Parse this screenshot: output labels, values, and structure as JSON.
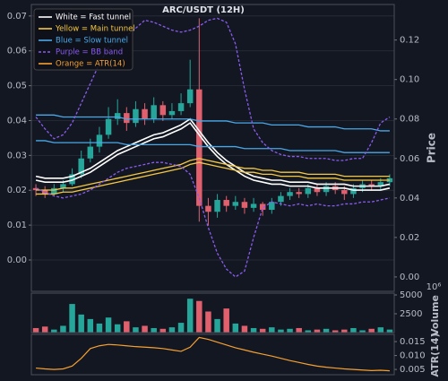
{
  "chart_data": [
    {
      "type": "candlestick",
      "title": "ARC/USDT (12H)",
      "ylabel": "Price",
      "legend": "upper left",
      "up_color": "#26a69a",
      "down_color": "#e0606e",
      "open": [
        0.045,
        0.044,
        0.042,
        0.045,
        0.047,
        0.052,
        0.06,
        0.066,
        0.072,
        0.08,
        0.083,
        0.078,
        0.085,
        0.08,
        0.087,
        0.082,
        0.084,
        0.088,
        0.095,
        0.036,
        0.033,
        0.039,
        0.036,
        0.038,
        0.035,
        0.037,
        0.034,
        0.038,
        0.041,
        0.043,
        0.042,
        0.045,
        0.043,
        0.046,
        0.044,
        0.042,
        0.045,
        0.047,
        0.046,
        0.048
      ],
      "high": [
        0.047,
        0.046,
        0.047,
        0.049,
        0.055,
        0.064,
        0.07,
        0.076,
        0.086,
        0.09,
        0.086,
        0.089,
        0.088,
        0.091,
        0.089,
        0.088,
        0.093,
        0.11,
        0.131,
        0.04,
        0.042,
        0.041,
        0.041,
        0.04,
        0.04,
        0.038,
        0.04,
        0.043,
        0.045,
        0.045,
        0.047,
        0.047,
        0.048,
        0.048,
        0.046,
        0.047,
        0.049,
        0.049,
        0.05,
        0.052
      ],
      "low": [
        0.041,
        0.04,
        0.041,
        0.043,
        0.046,
        0.05,
        0.058,
        0.063,
        0.07,
        0.077,
        0.074,
        0.076,
        0.077,
        0.078,
        0.079,
        0.08,
        0.082,
        0.086,
        0.028,
        0.026,
        0.03,
        0.033,
        0.034,
        0.032,
        0.033,
        0.031,
        0.032,
        0.036,
        0.039,
        0.04,
        0.04,
        0.041,
        0.041,
        0.042,
        0.039,
        0.04,
        0.043,
        0.044,
        0.044,
        0.046
      ],
      "close": [
        0.044,
        0.042,
        0.045,
        0.047,
        0.052,
        0.06,
        0.066,
        0.072,
        0.08,
        0.083,
        0.078,
        0.085,
        0.08,
        0.087,
        0.082,
        0.084,
        0.088,
        0.095,
        0.036,
        0.033,
        0.039,
        0.036,
        0.038,
        0.035,
        0.037,
        0.034,
        0.038,
        0.041,
        0.043,
        0.042,
        0.045,
        0.043,
        0.046,
        0.044,
        0.042,
        0.045,
        0.047,
        0.046,
        0.048,
        0.05
      ],
      "ylim": [
        -0.0073,
        0.138
      ],
      "yticks": [
        {
          "value": 0,
          "label": "0.00"
        },
        {
          "value": 0.02,
          "label": "0.02"
        },
        {
          "value": 0.04,
          "label": "0.04"
        },
        {
          "value": 0.06,
          "label": "0.06"
        },
        {
          "value": 0.08,
          "label": "0.08"
        },
        {
          "value": 0.1,
          "label": "0.10"
        },
        {
          "value": 0.12,
          "label": "0.12"
        }
      ],
      "y2lim": [
        -0.009,
        0.0733
      ],
      "y2ticks": [
        {
          "value": 0,
          "label": "0.00"
        },
        {
          "value": 0.01,
          "label": "0.01"
        },
        {
          "value": 0.02,
          "label": "0.02"
        },
        {
          "value": 0.03,
          "label": "0.03"
        },
        {
          "value": 0.04,
          "label": "0.04"
        },
        {
          "value": 0.05,
          "label": "0.05"
        },
        {
          "value": 0.06,
          "label": "0.06"
        },
        {
          "value": 0.07,
          "label": "0.07"
        }
      ],
      "grid": true,
      "series": [
        {
          "name": "White = Fast tunnel",
          "color": "#ffffff",
          "values": [
            0.051,
            0.05,
            0.05,
            0.05,
            0.051,
            0.053,
            0.055,
            0.058,
            0.061,
            0.064,
            0.066,
            0.068,
            0.07,
            0.072,
            0.073,
            0.075,
            0.077,
            0.08,
            0.074,
            0.068,
            0.063,
            0.059,
            0.056,
            0.053,
            0.051,
            0.05,
            0.049,
            0.049,
            0.048,
            0.048,
            0.048,
            0.047,
            0.047,
            0.047,
            0.047,
            0.046,
            0.046,
            0.046,
            0.046,
            0.047
          ]
        },
        {
          "color": "#ffffff",
          "values": [
            0.049,
            0.048,
            0.048,
            0.048,
            0.049,
            0.051,
            0.053,
            0.056,
            0.059,
            0.062,
            0.064,
            0.066,
            0.068,
            0.07,
            0.071,
            0.073,
            0.075,
            0.078,
            0.072,
            0.066,
            0.061,
            0.057,
            0.054,
            0.051,
            0.049,
            0.048,
            0.047,
            0.047,
            0.046,
            0.046,
            0.046,
            0.045,
            0.045,
            0.045,
            0.045,
            0.044,
            0.044,
            0.044,
            0.044,
            0.045
          ]
        },
        {
          "name": "Yellow = Main tunnel",
          "color": "#f5c842",
          "values": [
            0.044,
            0.044,
            0.044,
            0.045,
            0.045,
            0.046,
            0.047,
            0.048,
            0.049,
            0.05,
            0.051,
            0.052,
            0.053,
            0.054,
            0.055,
            0.056,
            0.057,
            0.059,
            0.06,
            0.059,
            0.058,
            0.057,
            0.056,
            0.055,
            0.055,
            0.054,
            0.054,
            0.053,
            0.053,
            0.053,
            0.052,
            0.052,
            0.052,
            0.052,
            0.051,
            0.051,
            0.051,
            0.051,
            0.051,
            0.051
          ]
        },
        {
          "color": "#f5c842",
          "values": [
            0.042,
            0.042,
            0.042,
            0.043,
            0.043,
            0.044,
            0.045,
            0.046,
            0.047,
            0.048,
            0.049,
            0.05,
            0.051,
            0.052,
            0.053,
            0.054,
            0.055,
            0.057,
            0.058,
            0.057,
            0.056,
            0.055,
            0.054,
            0.053,
            0.053,
            0.052,
            0.052,
            0.051,
            0.051,
            0.051,
            0.05,
            0.05,
            0.05,
            0.05,
            0.049,
            0.049,
            0.049,
            0.049,
            0.049,
            0.049
          ]
        },
        {
          "name": "Blue = Slow tunnel",
          "color": "#4aa8e8",
          "values": [
            0.082,
            0.082,
            0.082,
            0.081,
            0.081,
            0.081,
            0.081,
            0.081,
            0.081,
            0.081,
            0.08,
            0.08,
            0.08,
            0.08,
            0.08,
            0.08,
            0.08,
            0.08,
            0.079,
            0.079,
            0.079,
            0.079,
            0.078,
            0.078,
            0.078,
            0.078,
            0.077,
            0.077,
            0.077,
            0.077,
            0.076,
            0.076,
            0.076,
            0.076,
            0.075,
            0.075,
            0.075,
            0.075,
            0.074,
            0.074
          ]
        },
        {
          "color": "#4aa8e8",
          "values": [
            0.069,
            0.069,
            0.068,
            0.068,
            0.068,
            0.068,
            0.068,
            0.068,
            0.068,
            0.068,
            0.067,
            0.067,
            0.067,
            0.067,
            0.067,
            0.067,
            0.067,
            0.067,
            0.066,
            0.066,
            0.066,
            0.066,
            0.066,
            0.065,
            0.065,
            0.065,
            0.065,
            0.065,
            0.064,
            0.064,
            0.064,
            0.064,
            0.064,
            0.064,
            0.063,
            0.063,
            0.063,
            0.063,
            0.063,
            0.063
          ]
        },
        {
          "name": "Purple = BB band",
          "color": "#8a5cf0",
          "dashed": true,
          "values": [
            0.081,
            0.075,
            0.07,
            0.072,
            0.078,
            0.088,
            0.098,
            0.108,
            0.116,
            0.12,
            0.122,
            0.126,
            0.13,
            0.129,
            0.127,
            0.125,
            0.124,
            0.125,
            0.127,
            0.13,
            0.131,
            0.129,
            0.118,
            0.095,
            0.075,
            0.068,
            0.064,
            0.062,
            0.061,
            0.061,
            0.06,
            0.06,
            0.06,
            0.059,
            0.059,
            0.06,
            0.06,
            0.068,
            0.078,
            0.081
          ]
        },
        {
          "color": "#8a5cf0",
          "dashed": true,
          "values": [
            0.045,
            0.043,
            0.041,
            0.04,
            0.041,
            0.042,
            0.044,
            0.047,
            0.05,
            0.053,
            0.055,
            0.056,
            0.057,
            0.058,
            0.058,
            0.057,
            0.056,
            0.052,
            0.04,
            0.025,
            0.012,
            0.004,
            0.0,
            0.003,
            0.02,
            0.035,
            0.038,
            0.037,
            0.036,
            0.037,
            0.036,
            0.037,
            0.036,
            0.036,
            0.037,
            0.037,
            0.038,
            0.038,
            0.039,
            0.04
          ]
        }
      ]
    },
    {
      "type": "bar",
      "ylabel": "Volume",
      "offset_label": "10⁶",
      "values": [
        600,
        800,
        400,
        900,
        3800,
        2400,
        1800,
        1200,
        2000,
        1100,
        1500,
        700,
        900,
        600,
        500,
        700,
        1300,
        4500,
        4200,
        2800,
        1800,
        3200,
        1200,
        900,
        600,
        500,
        700,
        400,
        500,
        600,
        300,
        400,
        500,
        300,
        400,
        600,
        300,
        500,
        700,
        400
      ],
      "ylim": [
        0,
        5240
      ],
      "yticks": [
        2500,
        5000
      ]
    },
    {
      "type": "line",
      "ylabel": "ATR(14)",
      "series": [
        {
          "name": "Orange = ATR(14)",
          "color": "#f5a030",
          "values": [
            0.0055,
            0.0052,
            0.005,
            0.0052,
            0.0062,
            0.009,
            0.0125,
            0.0135,
            0.014,
            0.0138,
            0.0135,
            0.0132,
            0.013,
            0.0128,
            0.0125,
            0.012,
            0.0115,
            0.013,
            0.0165,
            0.0158,
            0.0148,
            0.0138,
            0.0128,
            0.012,
            0.0112,
            0.0105,
            0.0098,
            0.009,
            0.0082,
            0.0075,
            0.0068,
            0.0062,
            0.0058,
            0.0055,
            0.0052,
            0.005,
            0.0048,
            0.0046,
            0.0047,
            0.0045
          ]
        }
      ],
      "ylim": [
        0.0031,
        0.0176
      ],
      "yticks": [
        0.005,
        {
          "value": 0.01,
          "label": "0.010"
        },
        0.015
      ]
    }
  ]
}
